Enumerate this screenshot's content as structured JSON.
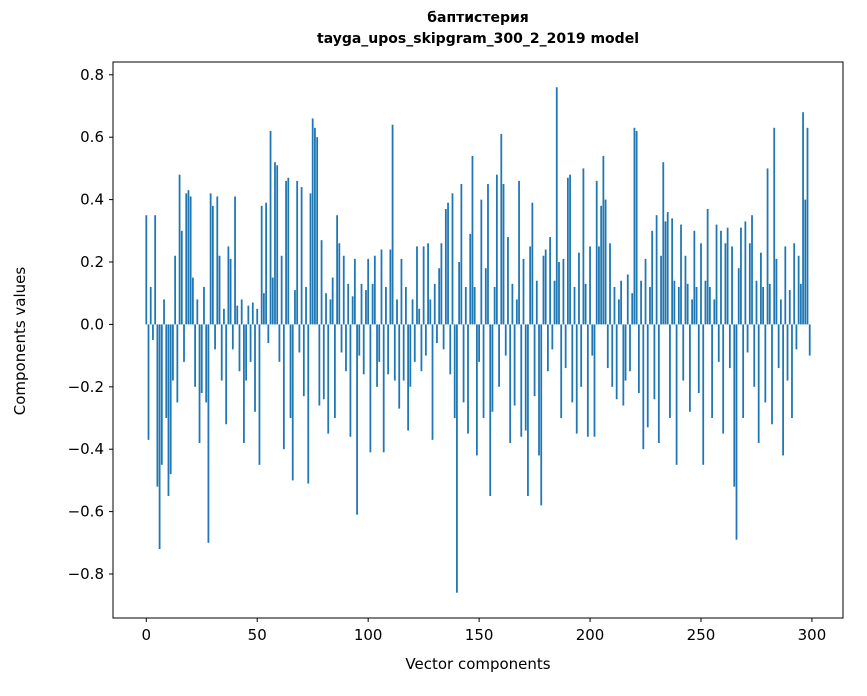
{
  "chart_data": {
    "type": "bar",
    "title": "баптистерия",
    "subtitle": "tayga_upos_skipgram_300_2_2019 model",
    "xlabel": "Vector components",
    "ylabel": "Components values",
    "bar_color": "#1f77b4",
    "grid": false,
    "legend": "none",
    "xlim": [
      -15,
      314
    ],
    "ylim": [
      -0.941,
      0.841
    ],
    "xticks": [
      0,
      50,
      100,
      150,
      200,
      250,
      300
    ],
    "yticks": [
      -0.8,
      -0.6,
      -0.4,
      -0.2,
      0.0,
      0.2,
      0.4,
      0.6,
      0.8
    ],
    "x_start": 0,
    "values": [
      0.35,
      -0.37,
      0.12,
      -0.05,
      0.35,
      -0.52,
      -0.72,
      -0.45,
      0.08,
      -0.3,
      -0.55,
      -0.48,
      -0.18,
      0.22,
      -0.25,
      0.48,
      0.3,
      -0.12,
      0.42,
      0.43,
      0.41,
      0.15,
      -0.2,
      0.08,
      -0.38,
      -0.22,
      0.12,
      -0.25,
      -0.7,
      0.42,
      0.38,
      -0.08,
      0.41,
      0.22,
      -0.18,
      0.05,
      -0.32,
      0.25,
      0.21,
      -0.08,
      0.41,
      0.06,
      -0.15,
      0.08,
      -0.38,
      -0.18,
      0.06,
      -0.12,
      0.07,
      -0.28,
      0.05,
      -0.45,
      0.38,
      0.1,
      0.39,
      -0.06,
      0.62,
      0.15,
      0.52,
      0.51,
      -0.12,
      0.22,
      -0.4,
      0.46,
      0.47,
      -0.3,
      -0.5,
      0.11,
      0.46,
      -0.09,
      0.44,
      -0.23,
      0.12,
      -0.51,
      0.42,
      0.66,
      0.63,
      0.6,
      -0.26,
      0.27,
      -0.24,
      0.1,
      -0.35,
      0.08,
      0.15,
      -0.3,
      0.35,
      0.26,
      -0.09,
      0.22,
      -0.15,
      0.13,
      -0.36,
      0.09,
      0.21,
      -0.61,
      -0.1,
      0.13,
      -0.16,
      0.11,
      0.21,
      -0.41,
      0.13,
      0.22,
      -0.2,
      -0.12,
      0.24,
      -0.41,
      0.12,
      -0.16,
      0.24,
      0.64,
      -0.18,
      0.08,
      -0.27,
      0.21,
      -0.18,
      0.12,
      -0.34,
      -0.2,
      0.08,
      -0.12,
      0.25,
      0.05,
      -0.15,
      0.25,
      -0.1,
      0.26,
      0.08,
      -0.37,
      0.13,
      -0.06,
      0.18,
      0.26,
      -0.08,
      0.37,
      0.39,
      -0.16,
      0.42,
      -0.3,
      -0.86,
      0.2,
      0.45,
      -0.25,
      0.12,
      -0.35,
      0.29,
      0.54,
      0.12,
      -0.42,
      -0.12,
      0.4,
      -0.3,
      0.18,
      0.45,
      -0.55,
      -0.28,
      0.12,
      0.48,
      -0.2,
      0.61,
      0.45,
      -0.1,
      0.28,
      -0.38,
      0.13,
      -0.26,
      0.08,
      0.46,
      -0.36,
      0.21,
      -0.34,
      -0.55,
      0.25,
      0.39,
      -0.23,
      0.14,
      -0.42,
      -0.58,
      0.22,
      0.24,
      -0.15,
      0.28,
      -0.08,
      0.14,
      0.76,
      0.2,
      -0.3,
      0.21,
      -0.14,
      0.47,
      0.48,
      -0.25,
      0.12,
      -0.35,
      0.23,
      -0.2,
      0.5,
      0.13,
      -0.36,
      0.25,
      -0.1,
      -0.36,
      0.46,
      0.25,
      0.38,
      0.54,
      0.4,
      -0.14,
      0.26,
      -0.2,
      0.12,
      -0.24,
      0.08,
      0.14,
      -0.26,
      -0.18,
      0.16,
      -0.15,
      0.1,
      0.63,
      0.62,
      -0.22,
      0.14,
      -0.4,
      0.21,
      -0.33,
      0.12,
      0.3,
      -0.24,
      0.35,
      -0.38,
      0.22,
      0.52,
      0.33,
      0.36,
      -0.3,
      0.34,
      0.14,
      -0.45,
      0.12,
      0.32,
      -0.18,
      0.22,
      0.13,
      -0.28,
      0.08,
      0.3,
      0.12,
      -0.22,
      0.26,
      -0.45,
      0.14,
      0.37,
      0.12,
      -0.3,
      0.08,
      0.32,
      -0.12,
      0.3,
      -0.35,
      0.26,
      0.31,
      -0.14,
      0.25,
      -0.52,
      -0.69,
      0.18,
      0.31,
      -0.3,
      0.33,
      -0.09,
      0.26,
      0.35,
      -0.2,
      0.14,
      -0.38,
      0.23,
      0.12,
      -0.25,
      0.5,
      0.13,
      -0.32,
      0.63,
      0.21,
      -0.14,
      0.08,
      -0.42,
      0.25,
      -0.18,
      0.11,
      -0.3,
      0.26,
      -0.08,
      0.22,
      0.13,
      0.68,
      0.4,
      0.63,
      -0.1
    ]
  }
}
